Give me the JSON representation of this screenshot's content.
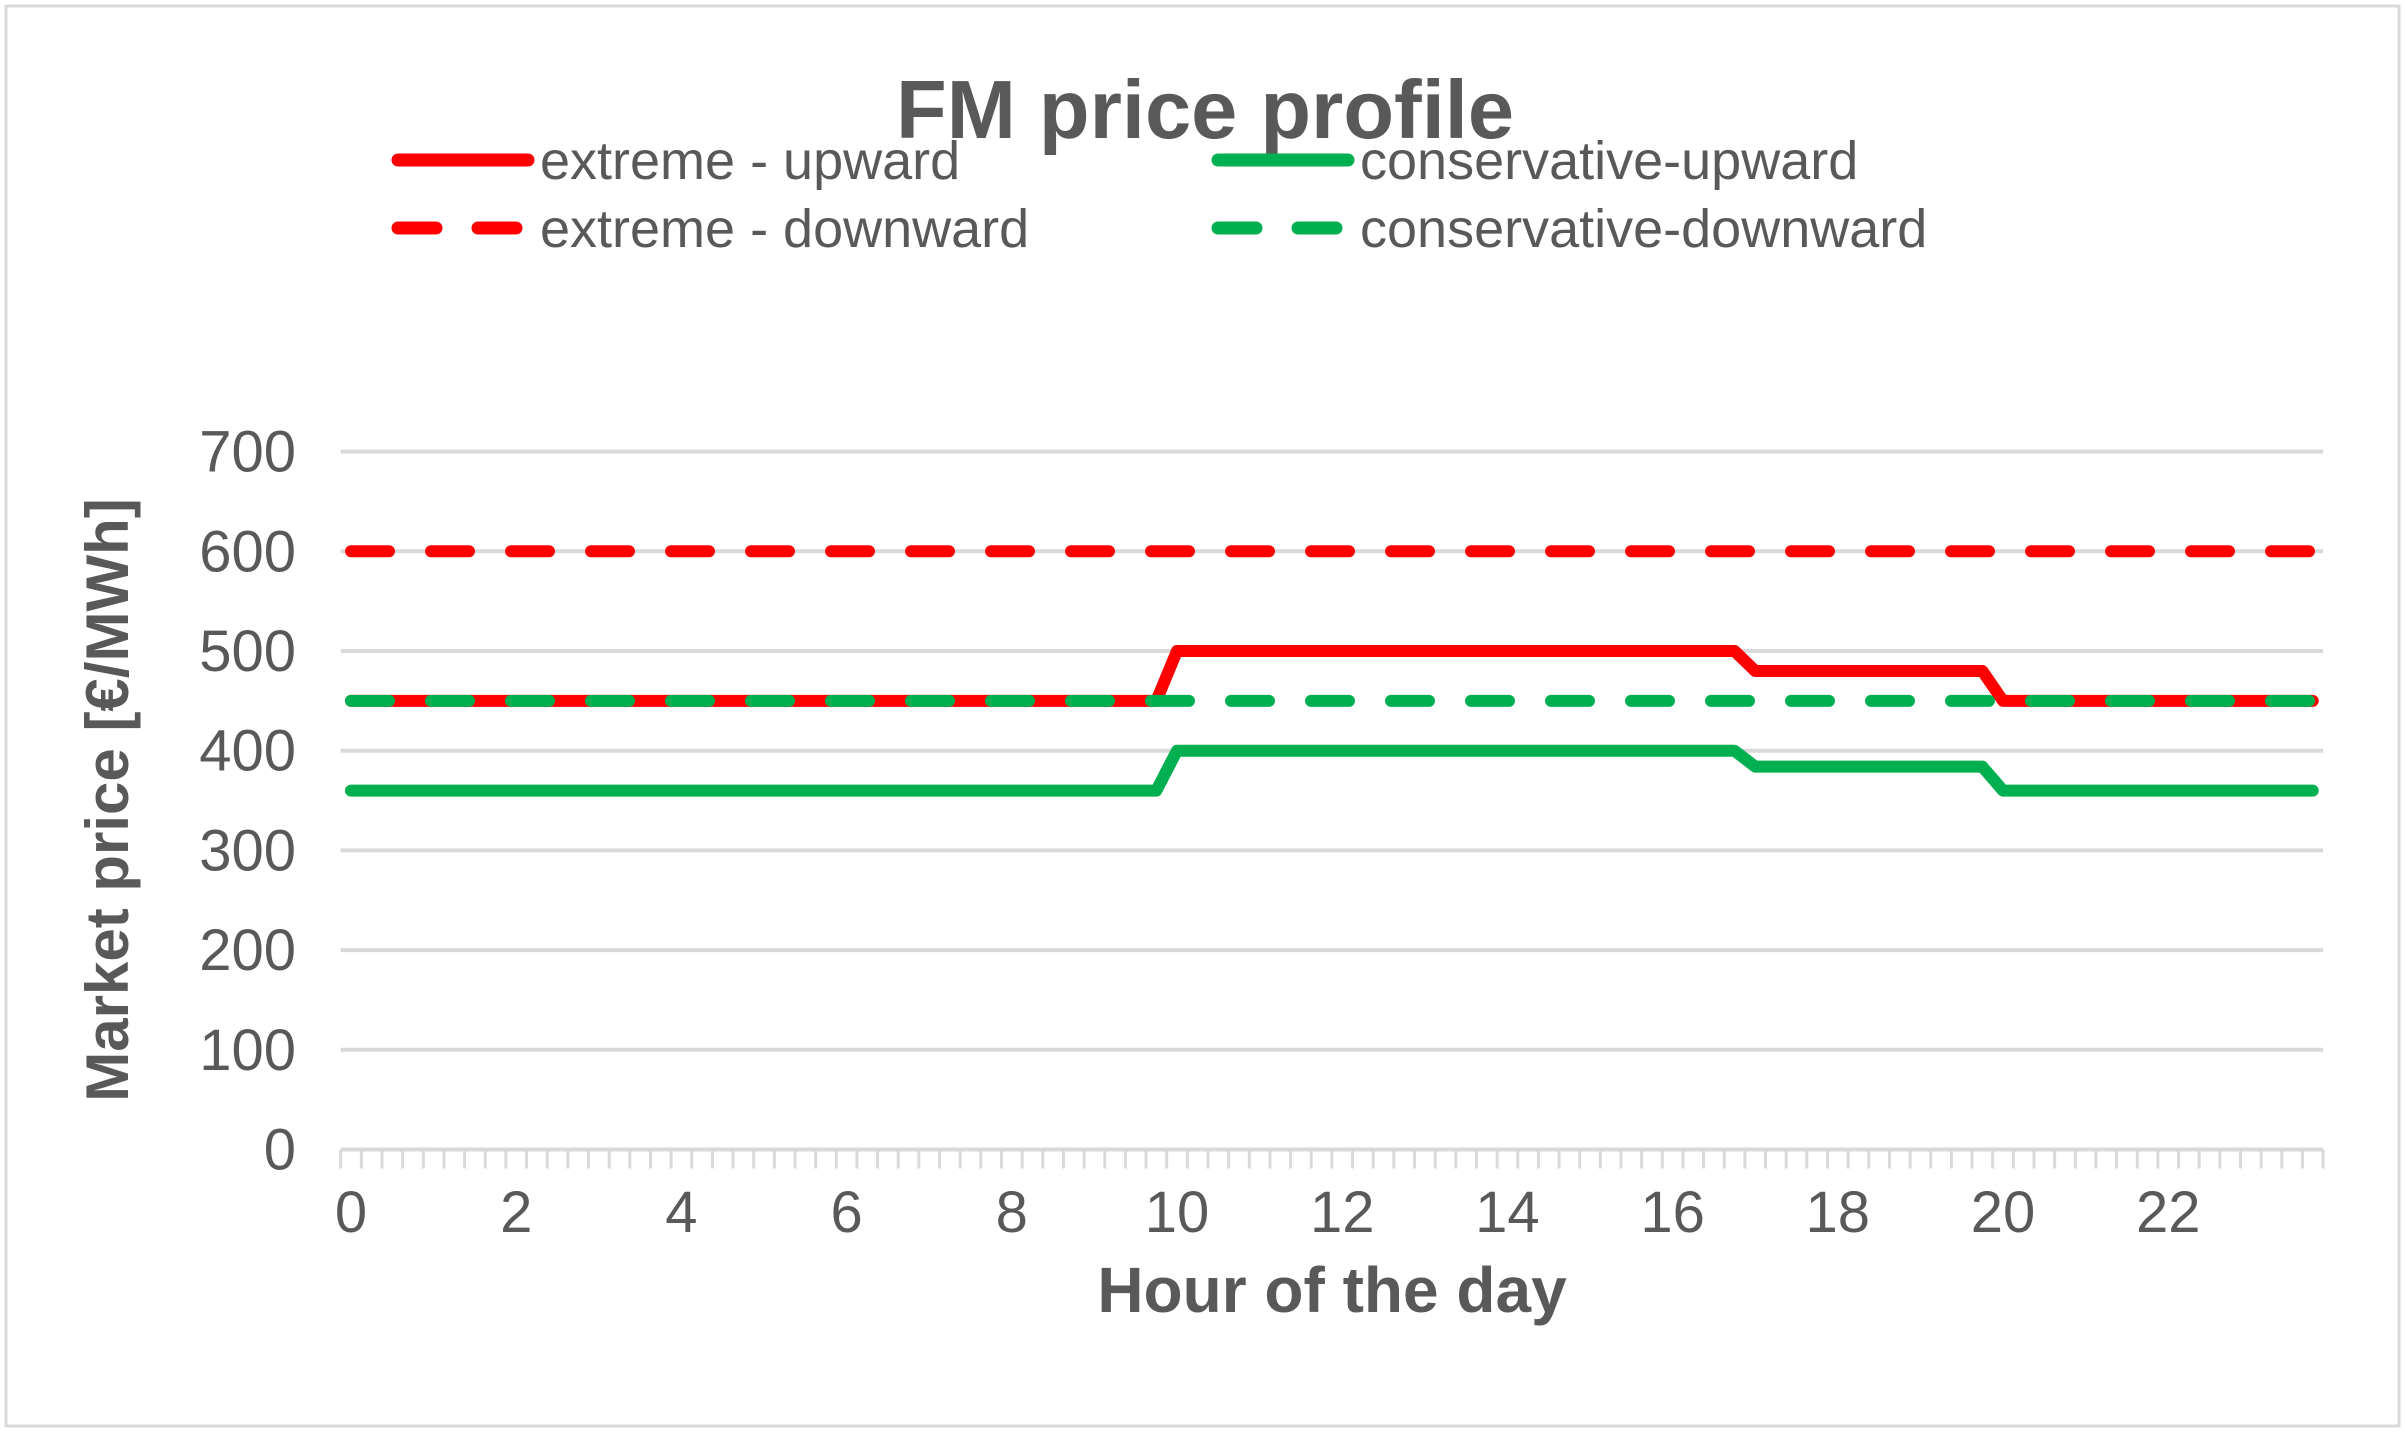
{
  "chart": {
    "background_color": "#FFFFFF",
    "border_color": "#D9D9D9",
    "text_color": "#595959",
    "gridline_color": "#D9D9D9"
  },
  "chart_data": {
    "type": "line",
    "title": "FM price profile",
    "xlabel": "Hour of the day",
    "ylabel": "Market price [€/MWh]",
    "xlim": [
      0,
      24
    ],
    "ylim": [
      0,
      700
    ],
    "yticks": [
      0,
      100,
      200,
      300,
      400,
      500,
      600,
      700
    ],
    "xticks": [
      0,
      2,
      4,
      6,
      8,
      10,
      12,
      14,
      16,
      18,
      20,
      22
    ],
    "grid": "horizontal",
    "legend_position": "top",
    "x_resolution_hours": 0.25,
    "series": [
      {
        "name": "extreme - upward",
        "color": "#FF0000",
        "style": "solid",
        "points": [
          [
            0,
            450
          ],
          [
            9.75,
            450
          ],
          [
            10,
            500
          ],
          [
            16.75,
            500
          ],
          [
            17,
            480
          ],
          [
            19.75,
            480
          ],
          [
            20,
            450
          ],
          [
            23.75,
            450
          ]
        ]
      },
      {
        "name": "extreme - downward",
        "color": "#FF0000",
        "style": "dashed",
        "points": [
          [
            0,
            600
          ],
          [
            23.75,
            600
          ]
        ]
      },
      {
        "name": "conservative-upward",
        "color": "#00B050",
        "style": "solid",
        "points": [
          [
            0,
            360
          ],
          [
            9.75,
            360
          ],
          [
            10,
            400
          ],
          [
            16.75,
            400
          ],
          [
            17,
            384
          ],
          [
            19.75,
            384
          ],
          [
            20,
            360
          ],
          [
            23.75,
            360
          ]
        ]
      },
      {
        "name": "conservative-downward",
        "color": "#00B050",
        "style": "dashed",
        "points": [
          [
            0,
            450
          ],
          [
            23.75,
            450
          ]
        ]
      }
    ]
  }
}
